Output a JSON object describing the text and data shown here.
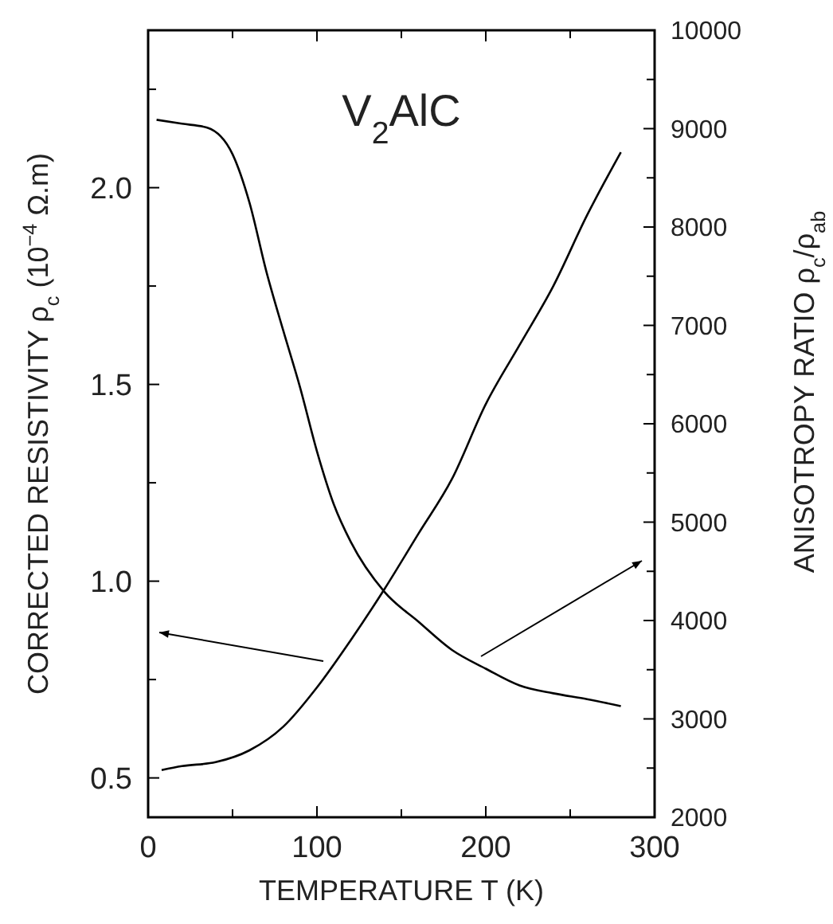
{
  "chart_data": {
    "type": "line",
    "title": "V$_{2}$AlC",
    "xlabel": "TEMPERATURE T (K)",
    "ylabel": "CORRECTED RESISTIVITY ρ$_{c}$ (10$^{−4}$ Ω.m)",
    "y2label": "ANISOTROPY RATIO ρ$_{c}$/ρ$_{ab}$",
    "xlim": [
      0,
      300
    ],
    "xticks": [
      0,
      {
        "value": 50,
        "label": null
      },
      100,
      {
        "value": 150,
        "label": null
      },
      200,
      {
        "value": 250,
        "label": null
      },
      300
    ],
    "ylim": [
      0.4,
      2.4
    ],
    "yticks": [
      {
        "value": 0.5,
        "label": "0.5"
      },
      {
        "value": 0.75,
        "label": null
      },
      {
        "value": 1,
        "label": "1.0"
      },
      {
        "value": 1.25,
        "label": null
      },
      {
        "value": 1.5,
        "label": "1.5"
      },
      {
        "value": 1.75,
        "label": null
      },
      {
        "value": 2,
        "label": "2.0"
      },
      {
        "value": 2.25,
        "label": null
      }
    ],
    "y2lim": [
      2000,
      10000
    ],
    "y2ticks": [
      2000,
      {
        "value": 2500,
        "label": null
      },
      3000,
      {
        "value": 3500,
        "label": null
      },
      4000,
      {
        "value": 4500,
        "label": null
      },
      5000,
      {
        "value": 5500,
        "label": null
      },
      6000,
      {
        "value": 6500,
        "label": null
      },
      7000,
      {
        "value": 7500,
        "label": null
      },
      8000,
      {
        "value": 8500,
        "label": null
      },
      9000,
      {
        "value": 9500,
        "label": null
      },
      10000
    ],
    "grid": false,
    "marker": "none",
    "line_style": "solid",
    "series": [
      {
        "color": "#000000",
        "x": [
          8,
          20,
          40,
          60,
          80,
          100,
          120,
          140,
          160,
          180,
          200,
          220,
          240,
          260,
          280
        ],
        "values": [
          0.52,
          0.53,
          0.54,
          0.57,
          0.63,
          0.73,
          0.85,
          0.98,
          1.12,
          1.26,
          1.45,
          1.6,
          1.75,
          1.93,
          2.09
        ]
      },
      {
        "color": "#000000",
        "axis": "y2",
        "x": [
          5,
          20,
          35,
          50,
          60,
          70,
          80,
          90,
          100,
          110,
          120,
          140,
          160,
          180,
          200,
          220,
          240,
          260,
          280
        ],
        "values": [
          9090,
          9050,
          9010,
          8740,
          8250,
          7550,
          6950,
          6370,
          5720,
          5180,
          4800,
          4290,
          3990,
          3700,
          3510,
          3340,
          3260,
          3200,
          3130
        ]
      }
    ]
  }
}
